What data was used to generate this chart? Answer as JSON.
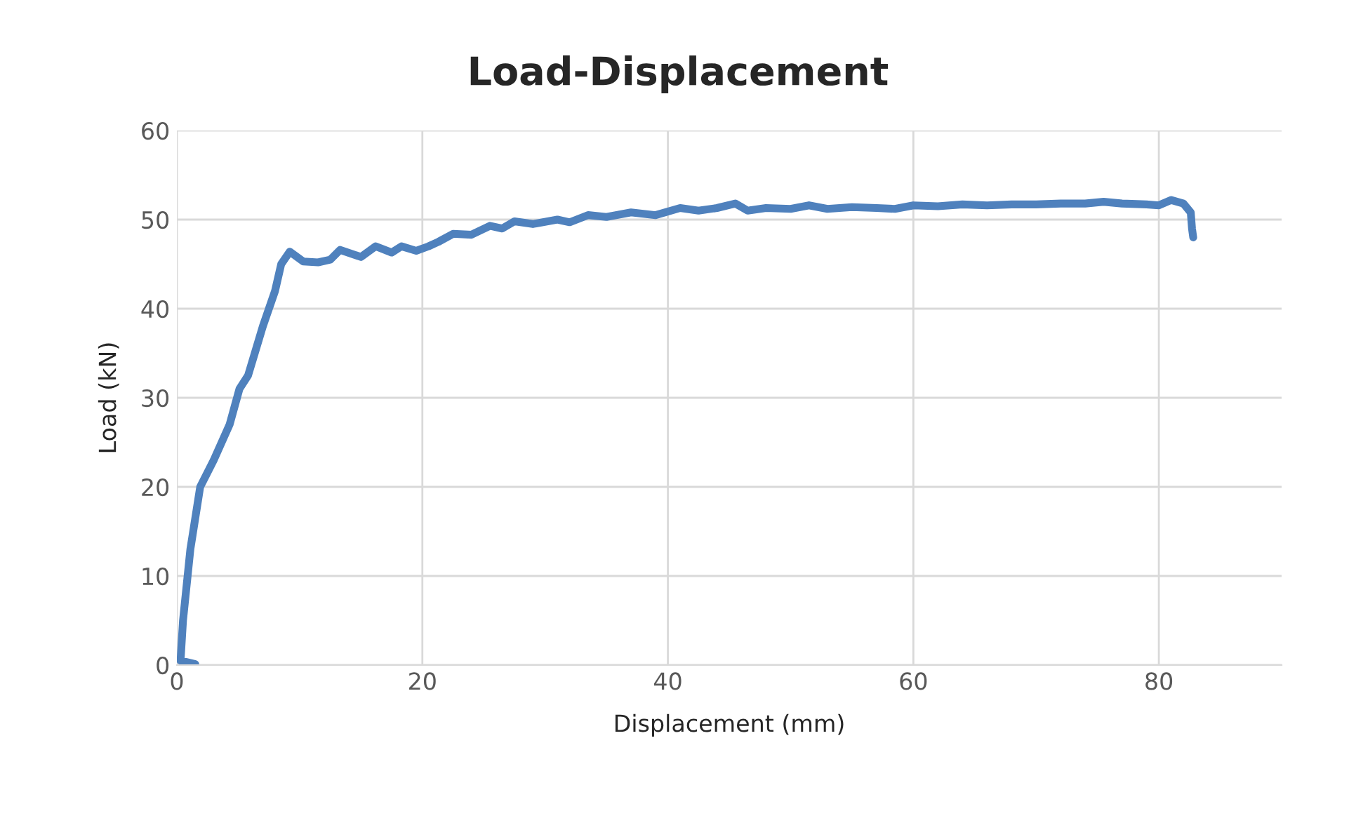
{
  "chart_data": {
    "type": "line",
    "title": "Load-Displacement",
    "xlabel": "Displacement (mm)",
    "ylabel": "Load (kN)",
    "xlim": [
      0,
      90
    ],
    "xticks": [
      0,
      20,
      40,
      60,
      80
    ],
    "ylim": [
      0,
      60
    ],
    "yticks": [
      0,
      10,
      20,
      30,
      40,
      50,
      60
    ],
    "grid": true,
    "marker": "none",
    "line_style": "solid",
    "series": [
      {
        "color": "#4f81bd",
        "x": [
          1.5,
          0.3,
          0.5,
          1.1,
          1.9,
          3,
          4.3,
          5.1,
          5.8,
          7,
          8,
          8.5,
          9.2,
          10.3,
          11.5,
          12.5,
          13.3,
          15,
          16.2,
          17.5,
          18.3,
          19.5,
          20.5,
          21.3,
          22.5,
          24,
          25.5,
          26.5,
          27.5,
          29,
          31,
          32,
          33.5,
          35,
          37,
          39,
          41,
          42.5,
          44,
          45.5,
          46.5,
          48,
          50,
          51.5,
          53,
          55,
          57,
          58.5,
          60,
          62,
          64,
          66,
          68,
          70,
          72,
          74,
          75.5,
          77,
          79,
          80,
          81,
          82,
          82.6,
          82.7,
          82.8
        ],
        "values": [
          0.1,
          0.5,
          5,
          13,
          20,
          23,
          27,
          31,
          32.5,
          38,
          42,
          45,
          46.4,
          45.3,
          45.2,
          45.5,
          46.6,
          45.8,
          47,
          46.3,
          47,
          46.5,
          47,
          47.5,
          48.4,
          48.3,
          49.3,
          49,
          49.8,
          49.5,
          50,
          49.7,
          50.5,
          50.3,
          50.8,
          50.5,
          51.3,
          51,
          51.3,
          51.8,
          51,
          51.3,
          51.2,
          51.6,
          51.2,
          51.4,
          51.3,
          51.2,
          51.6,
          51.5,
          51.7,
          51.6,
          51.7,
          51.7,
          51.8,
          51.8,
          52,
          51.8,
          51.7,
          51.6,
          52.2,
          51.8,
          50.8,
          49,
          48
        ]
      }
    ]
  }
}
